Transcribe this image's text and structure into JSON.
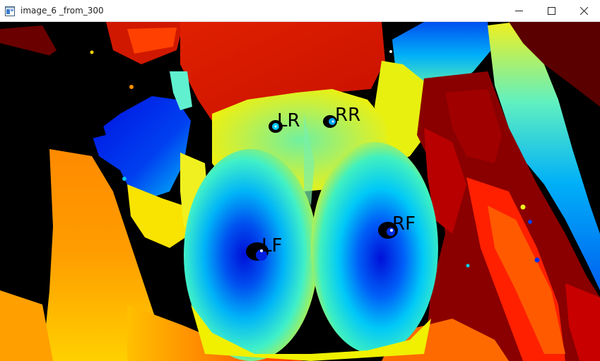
{
  "window": {
    "title": "image_6 _from_300",
    "icon": "app-window-icon",
    "controls": {
      "minimize": "minimize-icon",
      "maximize": "maximize-icon",
      "close": "close-icon"
    }
  },
  "image": {
    "description_colormap": "jet",
    "markers": [
      {
        "label": "LR"
      },
      {
        "label": "RR"
      },
      {
        "label": "LF"
      },
      {
        "label": "RF"
      }
    ]
  }
}
